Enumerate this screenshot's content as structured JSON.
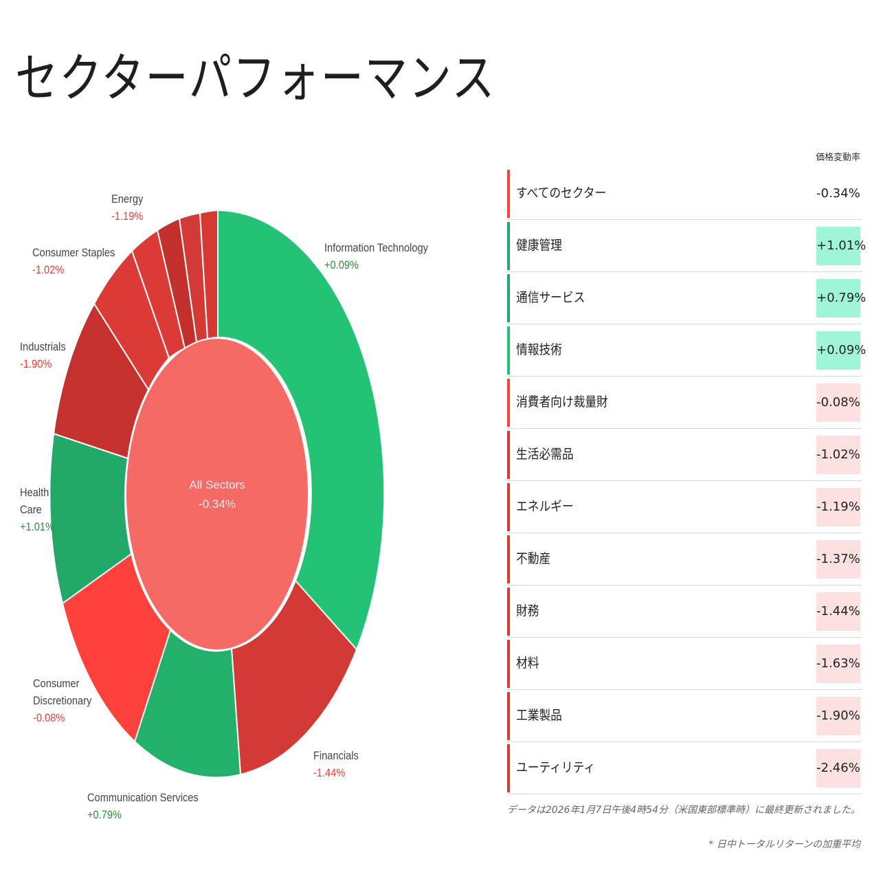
{
  "page": {
    "title": "セクターパフォーマンス"
  },
  "colors": {
    "positive": "#23c274",
    "positive_dark": "#22a96a",
    "negative_light": "#ff4040",
    "negative": "#dc3a36",
    "negative_dark": "#c5312f",
    "center": "#f56a65",
    "pos_bg": "#9ef5d8",
    "neg_bg": "#fde0e0",
    "pos_text": "#2e8b3a",
    "neg_text": "#f03a2e"
  },
  "chart": {
    "center": {
      "label": "All Sectors",
      "value": "-0.34%"
    },
    "labels": [
      {
        "name": "Information Technology",
        "value": "+0.09%",
        "sign": "pos"
      },
      {
        "name": "Financials",
        "value": "-1.44%",
        "sign": "neg"
      },
      {
        "name": "Communication Services",
        "value": "+0.79%",
        "sign": "pos"
      },
      {
        "name": "Consumer Discretionary",
        "value": "-0.08%",
        "sign": "neg"
      },
      {
        "name": "Health Care",
        "value": "+1.01%",
        "sign": "pos"
      },
      {
        "name": "Industrials",
        "value": "-1.90%",
        "sign": "neg"
      },
      {
        "name": "Consumer Staples",
        "value": "-1.02%",
        "sign": "neg"
      },
      {
        "name": "Energy",
        "value": "-1.19%",
        "sign": "neg"
      }
    ]
  },
  "table": {
    "header": "価格変動率",
    "rows": [
      {
        "name": "すべてのセクター",
        "value": "-0.34%",
        "sign": "neg",
        "highlight": false
      },
      {
        "name": "健康管理",
        "value": "+1.01%",
        "sign": "pos",
        "highlight": true
      },
      {
        "name": "通信サービス",
        "value": "+0.79%",
        "sign": "pos",
        "highlight": true
      },
      {
        "name": "情報技術",
        "value": "+0.09%",
        "sign": "pos",
        "highlight": true
      },
      {
        "name": "消費者向け裁量財",
        "value": "-0.08%",
        "sign": "neg",
        "highlight": true
      },
      {
        "name": "生活必需品",
        "value": "-1.02%",
        "sign": "neg",
        "highlight": true
      },
      {
        "name": "エネルギー",
        "value": "-1.19%",
        "sign": "neg",
        "highlight": true
      },
      {
        "name": "不動産",
        "value": "-1.37%",
        "sign": "neg",
        "highlight": true
      },
      {
        "name": "財務",
        "value": "-1.44%",
        "sign": "neg",
        "highlight": true
      },
      {
        "name": "材料",
        "value": "-1.63%",
        "sign": "neg",
        "highlight": true
      },
      {
        "name": "工業製品",
        "value": "-1.90%",
        "sign": "neg",
        "highlight": true
      },
      {
        "name": "ユーティリティ",
        "value": "-2.46%",
        "sign": "neg",
        "highlight": true
      }
    ]
  },
  "footer": {
    "updated": "データは2026年1月7日午後4時54分（米国東部標準時）に最終更新されました。",
    "note": "* 日中トータルリターンの加重平均"
  },
  "chart_data": {
    "type": "pie",
    "title": "セクターパフォーマンス",
    "subtitle": "All Sectors -0.34%",
    "categories": [
      "Information Technology",
      "Financials",
      "Communication Services",
      "Consumer Discretionary",
      "Health Care",
      "Industrials",
      "Consumer Staples",
      "Materials",
      "Real Estate",
      "Utilities",
      "Energy"
    ],
    "values": [
      0.09,
      -1.44,
      0.79,
      -0.08,
      1.01,
      -1.9,
      -1.02,
      -1.63,
      -1.37,
      -2.46,
      -1.19
    ],
    "approx_weight_pct": [
      35.0,
      13.0,
      10.0,
      10.5,
      9.5,
      8.5,
      5.5,
      2.5,
      2.0,
      1.5,
      1.2
    ],
    "value_unit": "% price change",
    "center": {
      "label": "All Sectors",
      "value": -0.34
    },
    "legend_position": "none (direct labels)"
  }
}
